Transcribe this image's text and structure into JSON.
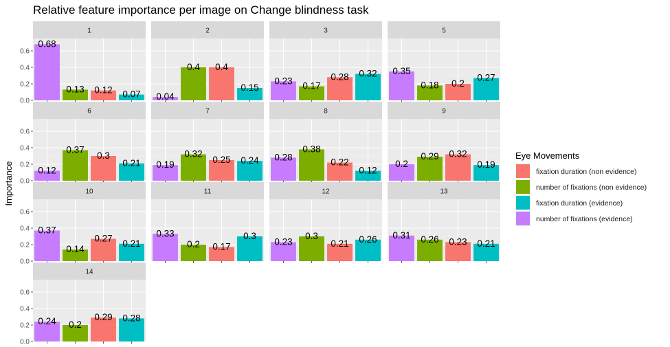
{
  "chart_data": {
    "type": "bar",
    "title": "Relative feature importance per image on Change blindness task",
    "xlabel": "",
    "ylabel": "Importance",
    "ylim": [
      0,
      0.75
    ],
    "y_ticks": [
      "0.0",
      "0.2",
      "0.4",
      "0.6"
    ],
    "grid": true,
    "legend_position": "right",
    "legend_title": "Eye Movements",
    "series": [
      {
        "name": "fixation duration (non evidence)",
        "color": "#F8766D"
      },
      {
        "name": "number of fixations (non evidence)",
        "color": "#7CAE00"
      },
      {
        "name": "fixation duration (evidence)",
        "color": "#00BFC4"
      },
      {
        "name": "number of fixations (evidence)",
        "color": "#C77CFF"
      }
    ],
    "bar_order": [
      "number of fixations (evidence)",
      "number of fixations (non evidence)",
      "fixation duration (non evidence)",
      "fixation duration (evidence)"
    ],
    "panels": [
      {
        "label": "1",
        "values": [
          0.68,
          0.13,
          0.12,
          0.07
        ],
        "text": [
          "0.68",
          "0.13",
          "0.12",
          "0.07"
        ]
      },
      {
        "label": "2",
        "values": [
          0.04,
          0.4,
          0.4,
          0.15
        ],
        "text": [
          "0.04",
          "0.4",
          "0.4",
          "0.15"
        ]
      },
      {
        "label": "3",
        "values": [
          0.23,
          0.17,
          0.28,
          0.32
        ],
        "text": [
          "0.23",
          "0.17",
          "0.28",
          "0.32"
        ]
      },
      {
        "label": "5",
        "values": [
          0.35,
          0.18,
          0.2,
          0.27
        ],
        "text": [
          "0.35",
          "0.18",
          "0.2",
          "0.27"
        ]
      },
      {
        "label": "6",
        "values": [
          0.12,
          0.37,
          0.3,
          0.21
        ],
        "text": [
          "0.12",
          "0.37",
          "0.3",
          "0.21"
        ]
      },
      {
        "label": "7",
        "values": [
          0.19,
          0.32,
          0.25,
          0.24
        ],
        "text": [
          "0.19",
          "0.32",
          "0.25",
          "0.24"
        ]
      },
      {
        "label": "8",
        "values": [
          0.28,
          0.38,
          0.22,
          0.12
        ],
        "text": [
          "0.28",
          "0.38",
          "0.22",
          "0.12"
        ]
      },
      {
        "label": "9",
        "values": [
          0.2,
          0.29,
          0.32,
          0.19
        ],
        "text": [
          "0.2",
          "0.29",
          "0.32",
          "0.19"
        ]
      },
      {
        "label": "10",
        "values": [
          0.37,
          0.14,
          0.27,
          0.21
        ],
        "text": [
          "0.37",
          "0.14",
          "0.27",
          "0.21"
        ]
      },
      {
        "label": "11",
        "values": [
          0.33,
          0.2,
          0.17,
          0.3
        ],
        "text": [
          "0.33",
          "0.2",
          "0.17",
          "0.3"
        ]
      },
      {
        "label": "12",
        "values": [
          0.23,
          0.3,
          0.21,
          0.26
        ],
        "text": [
          "0.23",
          "0.3",
          "0.21",
          "0.26"
        ]
      },
      {
        "label": "13",
        "values": [
          0.31,
          0.26,
          0.23,
          0.21
        ],
        "text": [
          "0.31",
          "0.26",
          "0.23",
          "0.21"
        ]
      },
      {
        "label": "14",
        "values": [
          0.24,
          0.2,
          0.29,
          0.28
        ],
        "text": [
          "0.24",
          "0.2",
          "0.29",
          "0.28"
        ]
      }
    ]
  }
}
